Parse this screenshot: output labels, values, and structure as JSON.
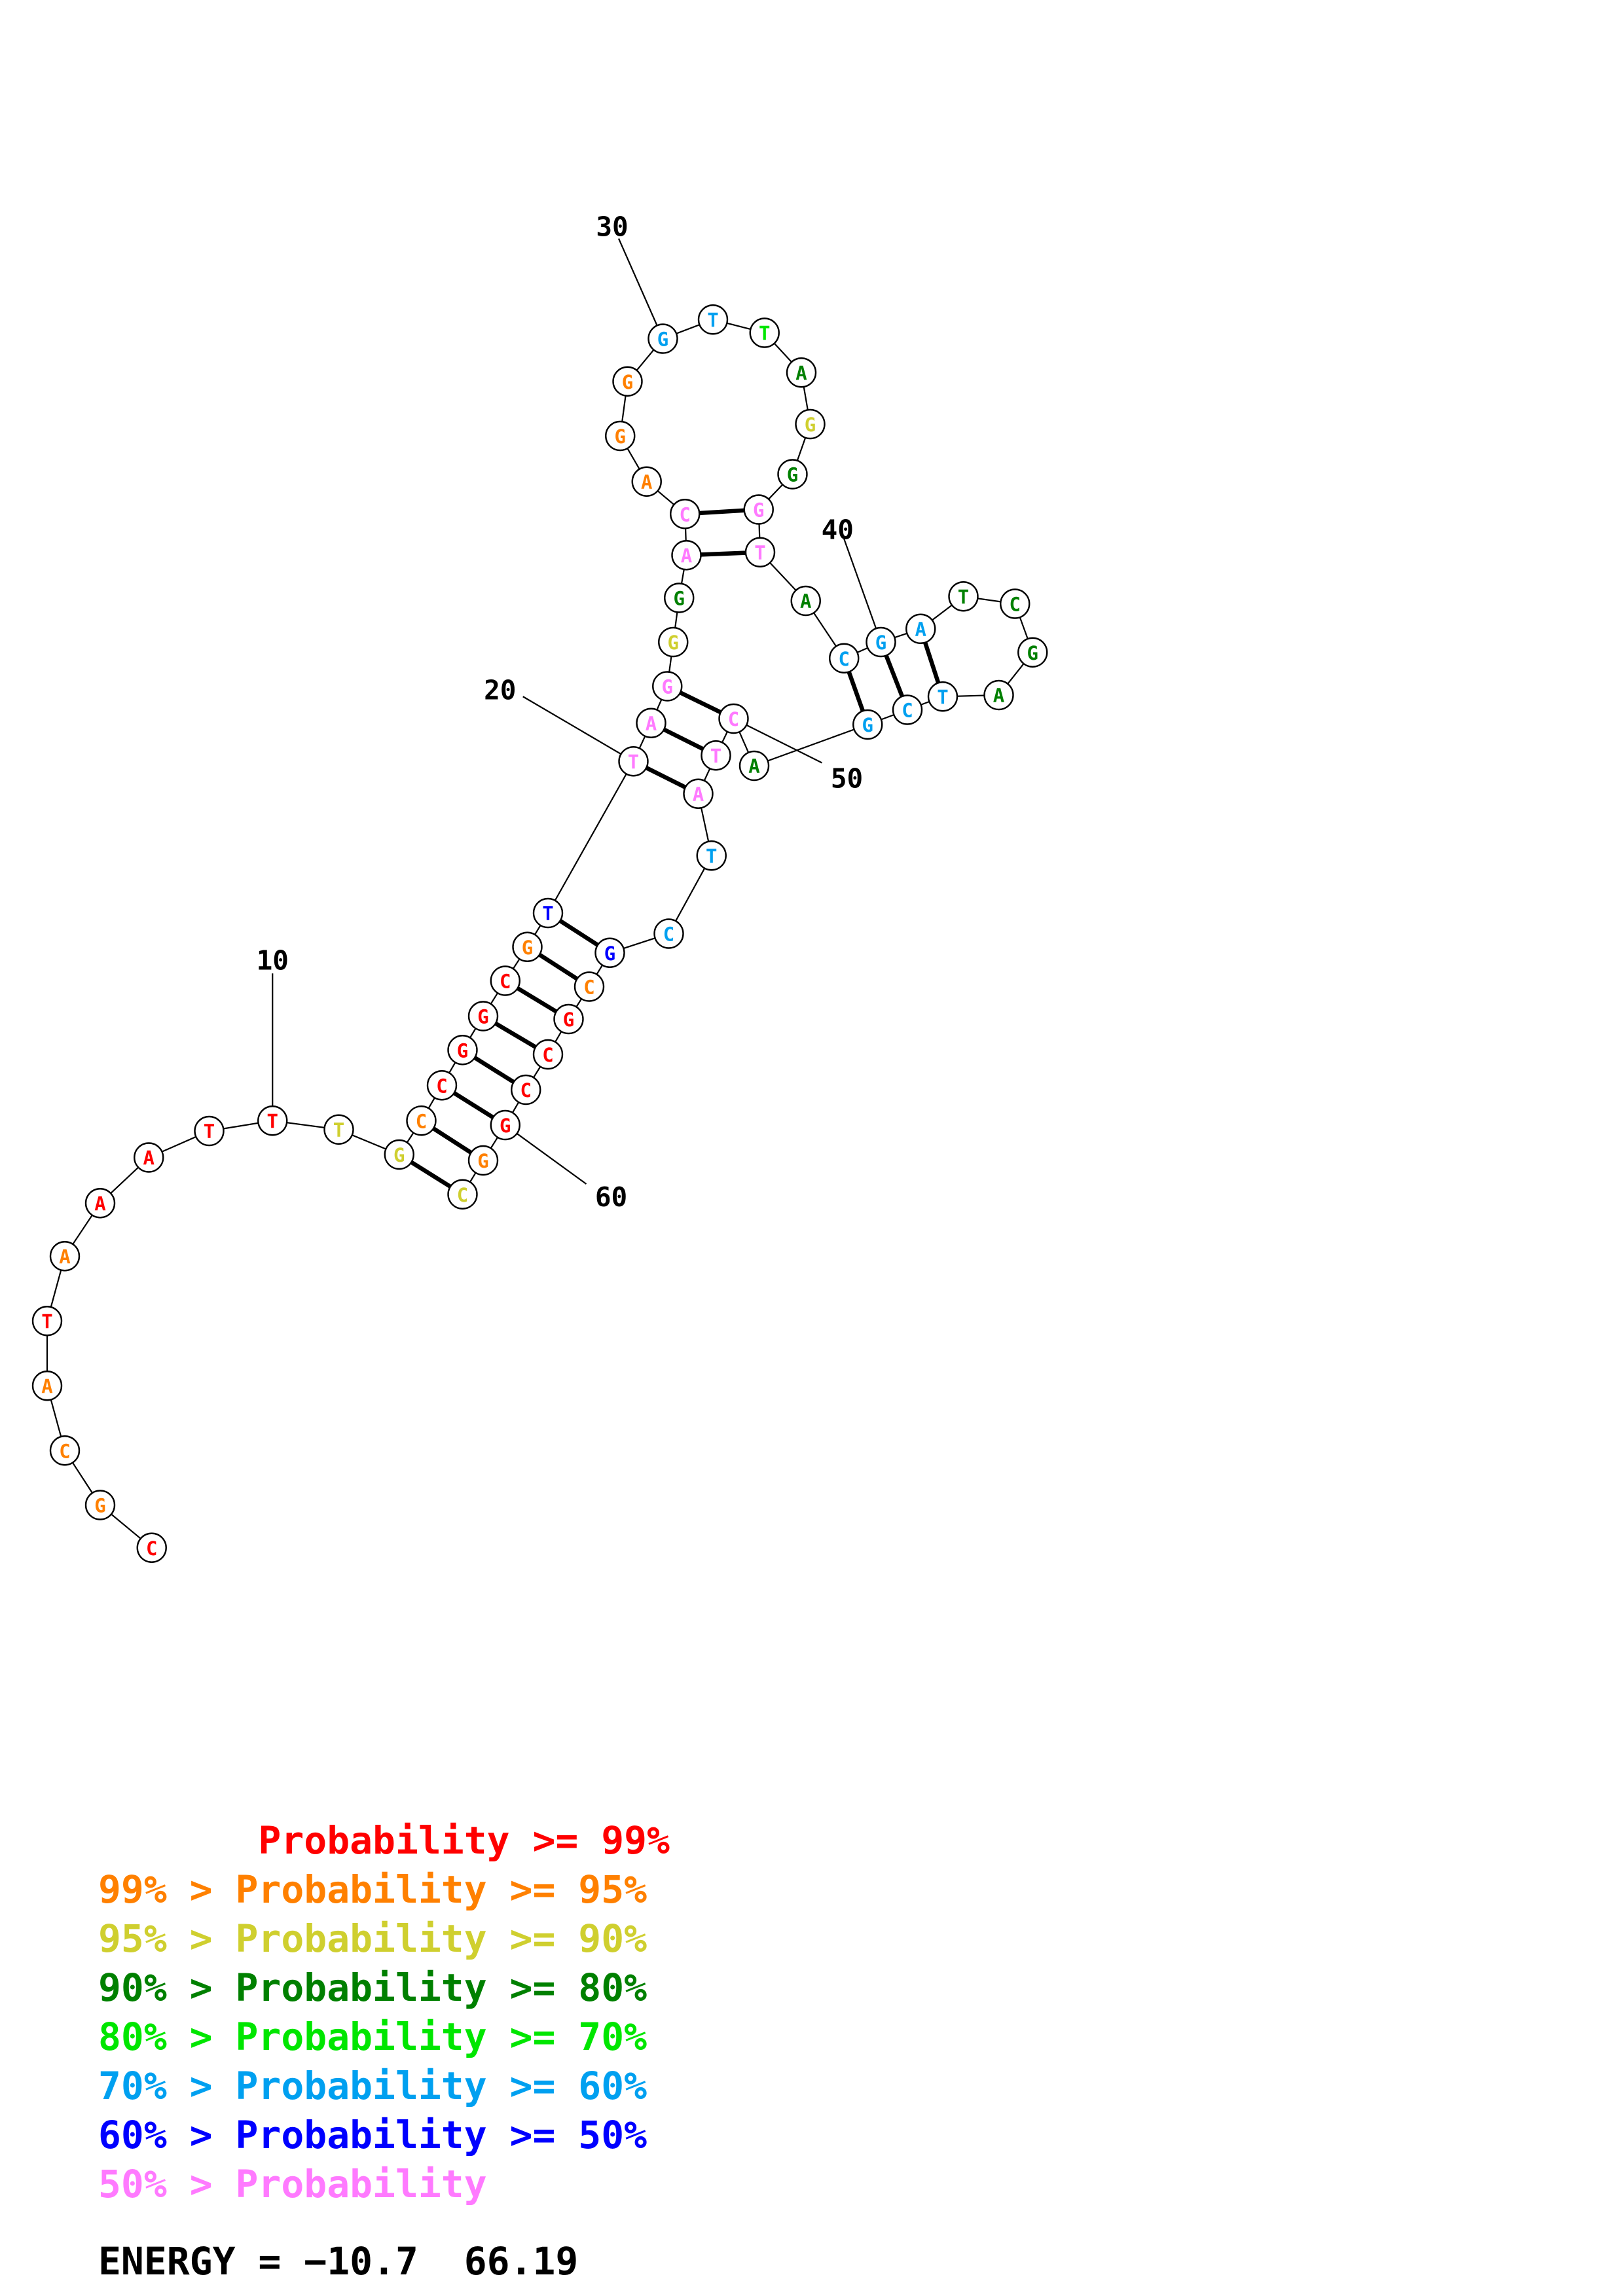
{
  "diagram": {
    "type": "rna-secondary-structure",
    "color_scale": {
      "p99": "#ff0000",
      "p95": "#ff8000",
      "p90": "#cfcf2f",
      "p80": "#008000",
      "p70": "#00e600",
      "p60": "#00a0f0",
      "p50": "#0000ff",
      "plt50": "#ff7aff"
    },
    "nucleotides": [
      {
        "n": 1,
        "base": "C",
        "color": "p99"
      },
      {
        "n": 2,
        "base": "G",
        "color": "p95"
      },
      {
        "n": 3,
        "base": "C",
        "color": "p95"
      },
      {
        "n": 4,
        "base": "A",
        "color": "p95"
      },
      {
        "n": 5,
        "base": "T",
        "color": "p99"
      },
      {
        "n": 6,
        "base": "A",
        "color": "p95"
      },
      {
        "n": 7,
        "base": "A",
        "color": "p99"
      },
      {
        "n": 8,
        "base": "A",
        "color": "p99"
      },
      {
        "n": 9,
        "base": "T",
        "color": "p99"
      },
      {
        "n": 10,
        "base": "T",
        "color": "p99"
      },
      {
        "n": 11,
        "base": "T",
        "color": "p90"
      },
      {
        "n": 12,
        "base": "G",
        "color": "p90"
      },
      {
        "n": 13,
        "base": "C",
        "color": "p95"
      },
      {
        "n": 14,
        "base": "C",
        "color": "p99"
      },
      {
        "n": 15,
        "base": "G",
        "color": "p99"
      },
      {
        "n": 16,
        "base": "G",
        "color": "p99"
      },
      {
        "n": 17,
        "base": "C",
        "color": "p99"
      },
      {
        "n": 18,
        "base": "G",
        "color": "p95"
      },
      {
        "n": 19,
        "base": "T",
        "color": "p50"
      },
      {
        "n": 20,
        "base": "T",
        "color": "plt50"
      },
      {
        "n": 21,
        "base": "A",
        "color": "plt50"
      },
      {
        "n": 22,
        "base": "G",
        "color": "plt50"
      },
      {
        "n": 23,
        "base": "G",
        "color": "p90"
      },
      {
        "n": 24,
        "base": "G",
        "color": "p80"
      },
      {
        "n": 25,
        "base": "A",
        "color": "plt50"
      },
      {
        "n": 26,
        "base": "C",
        "color": "plt50"
      },
      {
        "n": 27,
        "base": "A",
        "color": "p95"
      },
      {
        "n": 28,
        "base": "G",
        "color": "p95"
      },
      {
        "n": 29,
        "base": "G",
        "color": "p95"
      },
      {
        "n": 30,
        "base": "G",
        "color": "p60"
      },
      {
        "n": 31,
        "base": "T",
        "color": "p60"
      },
      {
        "n": 32,
        "base": "T",
        "color": "p70"
      },
      {
        "n": 33,
        "base": "A",
        "color": "p80"
      },
      {
        "n": 34,
        "base": "G",
        "color": "p90"
      },
      {
        "n": 35,
        "base": "G",
        "color": "p80"
      },
      {
        "n": 36,
        "base": "G",
        "color": "plt50"
      },
      {
        "n": 37,
        "base": "T",
        "color": "plt50"
      },
      {
        "n": 38,
        "base": "A",
        "color": "p80"
      },
      {
        "n": 39,
        "base": "C",
        "color": "p60"
      },
      {
        "n": 40,
        "base": "G",
        "color": "p60"
      },
      {
        "n": 41,
        "base": "A",
        "color": "p60"
      },
      {
        "n": 42,
        "base": "T",
        "color": "p80"
      },
      {
        "n": 43,
        "base": "C",
        "color": "p80"
      },
      {
        "n": 44,
        "base": "G",
        "color": "p80"
      },
      {
        "n": 45,
        "base": "A",
        "color": "p80"
      },
      {
        "n": 46,
        "base": "T",
        "color": "p60"
      },
      {
        "n": 47,
        "base": "C",
        "color": "p60"
      },
      {
        "n": 48,
        "base": "G",
        "color": "p60"
      },
      {
        "n": 49,
        "base": "A",
        "color": "p80"
      },
      {
        "n": 50,
        "base": "C",
        "color": "plt50"
      },
      {
        "n": 51,
        "base": "T",
        "color": "plt50"
      },
      {
        "n": 52,
        "base": "A",
        "color": "plt50"
      },
      {
        "n": 53,
        "base": "T",
        "color": "p60"
      },
      {
        "n": 54,
        "base": "C",
        "color": "p60"
      },
      {
        "n": 55,
        "base": "G",
        "color": "p50"
      },
      {
        "n": 56,
        "base": "C",
        "color": "p95"
      },
      {
        "n": 57,
        "base": "G",
        "color": "p99"
      },
      {
        "n": 58,
        "base": "C",
        "color": "p99"
      },
      {
        "n": 59,
        "base": "C",
        "color": "p99"
      },
      {
        "n": 60,
        "base": "G",
        "color": "p99"
      },
      {
        "n": 61,
        "base": "G",
        "color": "p95"
      },
      {
        "n": 62,
        "base": "C",
        "color": "p90"
      }
    ],
    "base_pairs": [
      [
        12,
        62
      ],
      [
        13,
        61
      ],
      [
        14,
        60
      ],
      [
        15,
        59
      ],
      [
        16,
        58
      ],
      [
        17,
        57
      ],
      [
        18,
        56
      ],
      [
        19,
        55
      ],
      [
        20,
        52
      ],
      [
        21,
        51
      ],
      [
        22,
        50
      ],
      [
        25,
        37
      ],
      [
        26,
        36
      ],
      [
        39,
        48
      ],
      [
        40,
        47
      ],
      [
        41,
        46
      ]
    ],
    "tick_labels": [
      {
        "n": 10,
        "text": "10"
      },
      {
        "n": 20,
        "text": "20"
      },
      {
        "n": 30,
        "text": "30"
      },
      {
        "n": 40,
        "text": "40"
      },
      {
        "n": 50,
        "text": "50"
      },
      {
        "n": 60,
        "text": "60"
      }
    ]
  },
  "legend": [
    {
      "prefix": "       ",
      "text": "Probability >= 99%",
      "color": "#ff0000"
    },
    {
      "prefix": "",
      "text": "99% > Probability >= 95%",
      "color": "#ff8000"
    },
    {
      "prefix": "",
      "text": "95% > Probability >= 90%",
      "color": "#cfcf2f"
    },
    {
      "prefix": "",
      "text": "90% > Probability >= 80%",
      "color": "#008000"
    },
    {
      "prefix": "",
      "text": "80% > Probability >= 70%",
      "color": "#00e600"
    },
    {
      "prefix": "",
      "text": "70% > Probability >= 60%",
      "color": "#00a0f0"
    },
    {
      "prefix": "",
      "text": "60% > Probability >= 50%",
      "color": "#0000ff"
    },
    {
      "prefix": "",
      "text": "50% > Probability",
      "color": "#ff7aff"
    }
  ],
  "energy": {
    "text": "ENERGY = −10.7  66.19"
  }
}
